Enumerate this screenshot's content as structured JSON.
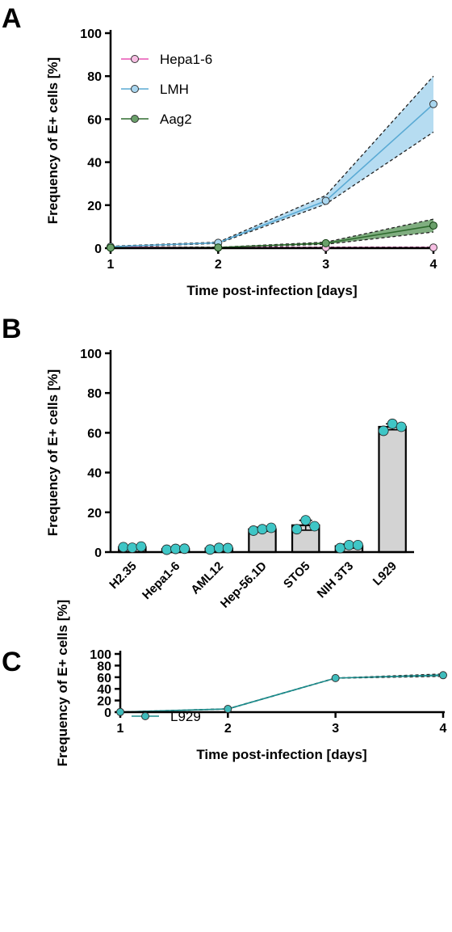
{
  "panels": {
    "a": {
      "letter": "A"
    },
    "b": {
      "letter": "B"
    },
    "c": {
      "letter": "C"
    }
  },
  "chart_data": [
    {
      "type": "line",
      "panel": "A",
      "x": [
        1,
        2,
        3,
        4
      ],
      "xticks": [
        "1",
        "2",
        "3",
        "4"
      ],
      "xlabel": "Time post-infection [days]",
      "ylabel": "Frequency of E+ cells [%]",
      "xlim": [
        1,
        4
      ],
      "ylim": [
        0,
        100
      ],
      "yticks": [
        "0",
        "20",
        "40",
        "60",
        "80",
        "100"
      ],
      "grid": false,
      "legend": "top-left",
      "series": [
        {
          "name": "Hepa1-6",
          "values": [
            0.5,
            0.3,
            0.3,
            0.3
          ],
          "lower": [
            0.3,
            0.2,
            0.2,
            0.2
          ],
          "upper": [
            0.7,
            0.5,
            0.5,
            0.5
          ],
          "color": "#e754b4",
          "fill": "#f7bfe3"
        },
        {
          "name": "LMH",
          "values": [
            0.7,
            2.5,
            22,
            67
          ],
          "lower": [
            0.5,
            2.2,
            20.5,
            54
          ],
          "upper": [
            0.9,
            2.8,
            24.5,
            80
          ],
          "color": "#5aaad4",
          "fill": "#a9d6ef"
        },
        {
          "name": "Aag2",
          "values": [
            0.2,
            0.3,
            2.3,
            10.5
          ],
          "lower": [
            0.1,
            0.2,
            1.8,
            7.5
          ],
          "upper": [
            0.3,
            0.4,
            2.8,
            13.5
          ],
          "color": "#2e6b2e",
          "fill": "#6aa06a"
        }
      ]
    },
    {
      "type": "bar",
      "panel": "B",
      "categories": [
        "H2.35",
        "Hepa1-6",
        "AML12",
        "Hep-56.1D",
        "STO5",
        "NIH 3T3",
        "L929"
      ],
      "values": [
        2.5,
        1.5,
        1.8,
        11.5,
        13.5,
        3.0,
        63
      ],
      "errors": [
        0.5,
        0.4,
        0.5,
        1.0,
        2.5,
        1.0,
        1.5
      ],
      "points": [
        [
          2.5,
          2.2,
          2.8
        ],
        [
          1.2,
          1.6,
          1.7
        ],
        [
          1.3,
          2.1,
          2.0
        ],
        [
          10.8,
          11.5,
          12.2
        ],
        [
          11.5,
          16,
          13.0
        ],
        [
          2.0,
          3.5,
          3.5
        ],
        [
          61,
          64.5,
          63
        ]
      ],
      "ylabel": "Frequency of E+ cells [%]",
      "ylim": [
        0,
        100
      ],
      "yticks": [
        "0",
        "20",
        "40",
        "60",
        "80",
        "100"
      ],
      "bar_color": "#d3d3d3",
      "point_color": "#3fc6c6",
      "grid": false
    },
    {
      "type": "line",
      "panel": "C",
      "x": [
        1,
        2,
        3,
        4
      ],
      "xticks": [
        "1",
        "2",
        "3",
        "4"
      ],
      "xlabel": "Time post-infection [days]",
      "ylabel": "Frequency of E+ cells [%]",
      "xlim": [
        1,
        4
      ],
      "ylim": [
        0,
        100
      ],
      "yticks": [
        "0",
        "20",
        "40",
        "60",
        "80",
        "100"
      ],
      "grid": false,
      "legend": "top-left",
      "series": [
        {
          "name": "L929",
          "values": [
            0.3,
            5.5,
            58.5,
            63.5
          ],
          "lower": [
            0.2,
            5.2,
            58.2,
            61.5
          ],
          "upper": [
            0.4,
            5.8,
            58.8,
            65.5
          ],
          "color": "#1a8c8c",
          "fill": "#3fbcbc"
        }
      ]
    }
  ]
}
